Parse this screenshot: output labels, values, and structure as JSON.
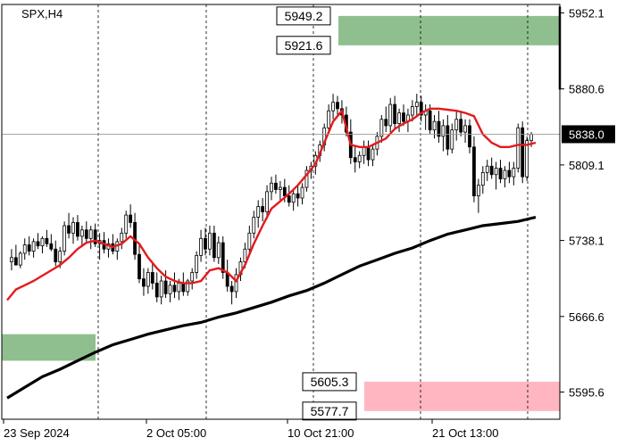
{
  "chart_data": {
    "type": "candlestick",
    "symbol_label": "SPX,H4",
    "x_tick_labels": [
      "23 Sep 2024",
      "2 Oct 05:00",
      "10 Oct 21:00",
      "21 Oct 13:00"
    ],
    "y_tick_labels": [
      "5952.1",
      "5880.6",
      "5809.1",
      "5738.1",
      "5666.6",
      "5595.6"
    ],
    "y_ticks": [
      5952.1,
      5880.6,
      5809.1,
      5738.1,
      5666.6,
      5595.6
    ],
    "ylim": [
      5570.0,
      5960.0
    ],
    "current_price": 5838.0,
    "current_price_label": "5838.0",
    "grid": "vertical dashed at time ticks",
    "upper_zone": {
      "high": 5949.2,
      "low": 5921.6,
      "high_label": "5949.2",
      "low_label": "5921.6",
      "color": "#8fbf8f"
    },
    "lower_zone": {
      "high": 5605.3,
      "low": 5577.7,
      "high_label": "5605.3",
      "low_label": "5577.7",
      "color": "#ffb6c1"
    },
    "left_zone": {
      "high": 5650.0,
      "low": 5625.0,
      "color": "#8fbf8f"
    },
    "ma_fast": {
      "color": "#e41a1c",
      "values": [
        [
          0,
          5682
        ],
        [
          10,
          5692
        ],
        [
          20,
          5696
        ],
        [
          30,
          5700
        ],
        [
          40,
          5705
        ],
        [
          50,
          5710
        ],
        [
          60,
          5715
        ],
        [
          70,
          5722
        ],
        [
          80,
          5730
        ],
        [
          90,
          5736
        ],
        [
          100,
          5738
        ],
        [
          110,
          5735
        ],
        [
          120,
          5732
        ],
        [
          130,
          5735
        ],
        [
          140,
          5742
        ],
        [
          150,
          5735
        ],
        [
          160,
          5722
        ],
        [
          170,
          5712
        ],
        [
          180,
          5704
        ],
        [
          190,
          5700
        ],
        [
          200,
          5698
        ],
        [
          210,
          5698
        ],
        [
          220,
          5700
        ],
        [
          230,
          5710
        ],
        [
          240,
          5712
        ],
        [
          250,
          5708
        ],
        [
          260,
          5700
        ],
        [
          270,
          5715
        ],
        [
          280,
          5735
        ],
        [
          290,
          5752
        ],
        [
          300,
          5768
        ],
        [
          310,
          5775
        ],
        [
          320,
          5782
        ],
        [
          330,
          5790
        ],
        [
          340,
          5800
        ],
        [
          350,
          5810
        ],
        [
          360,
          5830
        ],
        [
          370,
          5850
        ],
        [
          380,
          5860
        ],
        [
          390,
          5828
        ],
        [
          400,
          5826
        ],
        [
          410,
          5826
        ],
        [
          420,
          5830
        ],
        [
          430,
          5834
        ],
        [
          440,
          5843
        ],
        [
          450,
          5848
        ],
        [
          460,
          5852
        ],
        [
          470,
          5858
        ],
        [
          480,
          5862
        ],
        [
          490,
          5862
        ],
        [
          500,
          5861
        ],
        [
          510,
          5860
        ],
        [
          520,
          5858
        ],
        [
          530,
          5855
        ],
        [
          540,
          5838
        ],
        [
          550,
          5830
        ],
        [
          560,
          5826
        ],
        [
          570,
          5826
        ],
        [
          580,
          5828
        ],
        [
          590,
          5828
        ],
        [
          600,
          5830
        ]
      ]
    },
    "ma_slow": {
      "color": "#000000",
      "values": [
        [
          0,
          5590
        ],
        [
          20,
          5600
        ],
        [
          40,
          5610
        ],
        [
          60,
          5617
        ],
        [
          80,
          5625
        ],
        [
          100,
          5633
        ],
        [
          120,
          5640
        ],
        [
          140,
          5645
        ],
        [
          160,
          5650
        ],
        [
          180,
          5654
        ],
        [
          200,
          5658
        ],
        [
          220,
          5661
        ],
        [
          240,
          5666
        ],
        [
          260,
          5670
        ],
        [
          280,
          5675
        ],
        [
          300,
          5680
        ],
        [
          320,
          5686
        ],
        [
          340,
          5691
        ],
        [
          360,
          5698
        ],
        [
          380,
          5706
        ],
        [
          400,
          5714
        ],
        [
          420,
          5720
        ],
        [
          440,
          5726
        ],
        [
          460,
          5731
        ],
        [
          480,
          5738
        ],
        [
          500,
          5744
        ],
        [
          520,
          5748
        ],
        [
          540,
          5752
        ],
        [
          560,
          5754
        ],
        [
          580,
          5756
        ],
        [
          600,
          5760
        ]
      ]
    },
    "candles": [
      [
        5,
        5718,
        5730,
        5710,
        5722
      ],
      [
        10,
        5722,
        5734,
        5718,
        5715
      ],
      [
        15,
        5715,
        5728,
        5712,
        5726
      ],
      [
        20,
        5726,
        5740,
        5720,
        5734
      ],
      [
        25,
        5734,
        5742,
        5724,
        5728
      ],
      [
        30,
        5728,
        5740,
        5722,
        5737
      ],
      [
        35,
        5737,
        5745,
        5730,
        5733
      ],
      [
        40,
        5733,
        5742,
        5726,
        5740
      ],
      [
        45,
        5740,
        5748,
        5732,
        5735
      ],
      [
        50,
        5735,
        5744,
        5728,
        5730
      ],
      [
        55,
        5730,
        5738,
        5714,
        5718
      ],
      [
        60,
        5718,
        5732,
        5712,
        5728
      ],
      [
        65,
        5728,
        5756,
        5724,
        5752
      ],
      [
        70,
        5752,
        5764,
        5740,
        5745
      ],
      [
        75,
        5745,
        5760,
        5735,
        5755
      ],
      [
        80,
        5755,
        5762,
        5738,
        5742
      ],
      [
        85,
        5742,
        5752,
        5732,
        5748
      ],
      [
        90,
        5748,
        5756,
        5736,
        5740
      ],
      [
        95,
        5740,
        5752,
        5730,
        5748
      ],
      [
        100,
        5748,
        5754,
        5732,
        5735
      ],
      [
        105,
        5735,
        5745,
        5720,
        5738
      ],
      [
        110,
        5738,
        5746,
        5726,
        5730
      ],
      [
        115,
        5730,
        5740,
        5722,
        5735
      ],
      [
        120,
        5735,
        5744,
        5725,
        5728
      ],
      [
        125,
        5728,
        5740,
        5720,
        5737
      ],
      [
        130,
        5737,
        5750,
        5730,
        5745
      ],
      [
        135,
        5745,
        5766,
        5740,
        5762
      ],
      [
        140,
        5762,
        5772,
        5750,
        5755
      ],
      [
        145,
        5755,
        5764,
        5720,
        5725
      ],
      [
        150,
        5725,
        5735,
        5698,
        5702
      ],
      [
        155,
        5702,
        5712,
        5686,
        5695
      ],
      [
        160,
        5695,
        5712,
        5688,
        5708
      ],
      [
        165,
        5708,
        5718,
        5692,
        5698
      ],
      [
        170,
        5698,
        5708,
        5680,
        5685
      ],
      [
        175,
        5685,
        5705,
        5678,
        5700
      ],
      [
        180,
        5700,
        5710,
        5684,
        5688
      ],
      [
        185,
        5688,
        5700,
        5680,
        5696
      ],
      [
        190,
        5696,
        5708,
        5684,
        5690
      ],
      [
        195,
        5690,
        5702,
        5682,
        5698
      ],
      [
        200,
        5698,
        5708,
        5686,
        5690
      ],
      [
        205,
        5690,
        5702,
        5686,
        5700
      ],
      [
        210,
        5700,
        5712,
        5692,
        5708
      ],
      [
        215,
        5708,
        5728,
        5702,
        5724
      ],
      [
        220,
        5724,
        5748,
        5718,
        5740
      ],
      [
        225,
        5740,
        5750,
        5724,
        5730
      ],
      [
        230,
        5730,
        5752,
        5724,
        5745
      ],
      [
        235,
        5745,
        5752,
        5718,
        5722
      ],
      [
        240,
        5722,
        5742,
        5716,
        5736
      ],
      [
        245,
        5736,
        5742,
        5702,
        5708
      ],
      [
        250,
        5708,
        5720,
        5690,
        5695
      ],
      [
        255,
        5695,
        5700,
        5678,
        5690
      ],
      [
        260,
        5690,
        5712,
        5684,
        5706
      ],
      [
        265,
        5706,
        5722,
        5700,
        5718
      ],
      [
        270,
        5718,
        5736,
        5712,
        5730
      ],
      [
        275,
        5730,
        5752,
        5724,
        5745
      ],
      [
        280,
        5745,
        5766,
        5740,
        5760
      ],
      [
        285,
        5760,
        5776,
        5750,
        5770
      ],
      [
        290,
        5770,
        5778,
        5756,
        5765
      ],
      [
        295,
        5765,
        5790,
        5758,
        5784
      ],
      [
        300,
        5784,
        5798,
        5776,
        5792
      ],
      [
        305,
        5792,
        5800,
        5782,
        5786
      ],
      [
        310,
        5786,
        5794,
        5776,
        5788
      ],
      [
        315,
        5788,
        5796,
        5774,
        5780
      ],
      [
        320,
        5780,
        5790,
        5770,
        5774
      ],
      [
        325,
        5774,
        5786,
        5766,
        5782
      ],
      [
        330,
        5782,
        5790,
        5770,
        5778
      ],
      [
        335,
        5778,
        5792,
        5772,
        5788
      ],
      [
        340,
        5788,
        5808,
        5784,
        5804
      ],
      [
        345,
        5804,
        5812,
        5796,
        5808
      ],
      [
        350,
        5808,
        5822,
        5800,
        5818
      ],
      [
        355,
        5818,
        5832,
        5812,
        5828
      ],
      [
        360,
        5828,
        5848,
        5822,
        5844
      ],
      [
        365,
        5844,
        5866,
        5840,
        5860
      ],
      [
        370,
        5860,
        5876,
        5852,
        5868
      ],
      [
        375,
        5868,
        5874,
        5856,
        5862
      ],
      [
        380,
        5862,
        5870,
        5848,
        5856
      ],
      [
        385,
        5856,
        5864,
        5836,
        5840
      ],
      [
        390,
        5840,
        5852,
        5810,
        5816
      ],
      [
        395,
        5816,
        5828,
        5802,
        5812
      ],
      [
        400,
        5812,
        5822,
        5806,
        5818
      ],
      [
        405,
        5818,
        5832,
        5810,
        5826
      ],
      [
        410,
        5826,
        5832,
        5808,
        5814
      ],
      [
        415,
        5814,
        5828,
        5808,
        5824
      ],
      [
        420,
        5824,
        5840,
        5818,
        5836
      ],
      [
        425,
        5836,
        5856,
        5830,
        5852
      ],
      [
        430,
        5852,
        5864,
        5840,
        5846
      ],
      [
        435,
        5846,
        5872,
        5840,
        5866
      ],
      [
        440,
        5866,
        5874,
        5842,
        5848
      ],
      [
        445,
        5848,
        5862,
        5840,
        5858
      ],
      [
        450,
        5858,
        5866,
        5846,
        5850
      ],
      [
        455,
        5850,
        5862,
        5840,
        5856
      ],
      [
        460,
        5856,
        5870,
        5850,
        5864
      ],
      [
        465,
        5864,
        5876,
        5856,
        5868
      ],
      [
        470,
        5868,
        5874,
        5850,
        5856
      ],
      [
        475,
        5856,
        5866,
        5842,
        5860
      ],
      [
        480,
        5860,
        5866,
        5838,
        5842
      ],
      [
        485,
        5842,
        5856,
        5834,
        5850
      ],
      [
        490,
        5850,
        5860,
        5830,
        5836
      ],
      [
        495,
        5836,
        5852,
        5822,
        5846
      ],
      [
        500,
        5846,
        5856,
        5818,
        5824
      ],
      [
        505,
        5824,
        5848,
        5820,
        5842
      ],
      [
        510,
        5842,
        5860,
        5832,
        5852
      ],
      [
        515,
        5852,
        5860,
        5836,
        5840
      ],
      [
        520,
        5840,
        5852,
        5830,
        5846
      ],
      [
        525,
        5846,
        5852,
        5820,
        5826
      ],
      [
        530,
        5826,
        5836,
        5774,
        5780
      ],
      [
        535,
        5780,
        5796,
        5764,
        5790
      ],
      [
        540,
        5790,
        5808,
        5782,
        5802
      ],
      [
        545,
        5802,
        5814,
        5794,
        5808
      ],
      [
        550,
        5808,
        5816,
        5796,
        5800
      ],
      [
        555,
        5800,
        5812,
        5786,
        5806
      ],
      [
        560,
        5806,
        5814,
        5792,
        5796
      ],
      [
        565,
        5796,
        5808,
        5788,
        5804
      ],
      [
        570,
        5804,
        5812,
        5792,
        5798
      ],
      [
        575,
        5798,
        5812,
        5790,
        5806
      ],
      [
        580,
        5806,
        5848,
        5802,
        5844
      ],
      [
        585,
        5844,
        5850,
        5792,
        5798
      ],
      [
        590,
        5798,
        5836,
        5794,
        5832
      ],
      [
        595,
        5832,
        5840,
        5826,
        5838
      ]
    ]
  }
}
